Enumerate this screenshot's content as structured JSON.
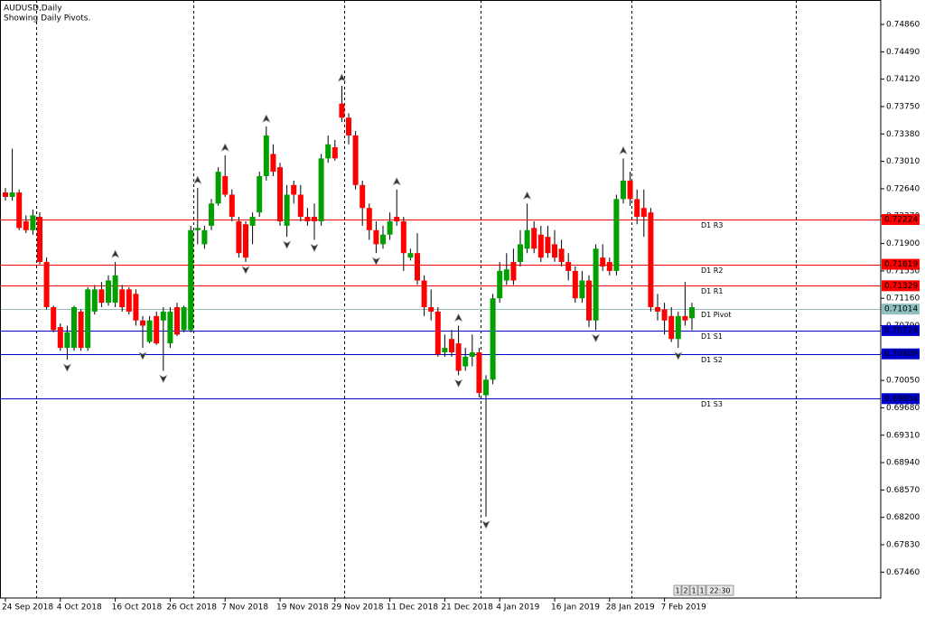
{
  "chart_data": {
    "type": "candlestick",
    "title": "AUDUSD,Daily",
    "subtitle": "Showing Daily Pivots.",
    "categories": [
      "24 Sep 2018",
      null,
      null,
      null,
      null,
      null,
      null,
      null,
      "4 Oct 2018",
      null,
      null,
      null,
      null,
      null,
      null,
      null,
      "16 Oct 2018",
      null,
      null,
      null,
      null,
      null,
      null,
      null,
      "26 Oct 2018",
      null,
      null,
      null,
      null,
      null,
      null,
      null,
      "7 Nov 2018",
      null,
      null,
      null,
      null,
      null,
      null,
      null,
      "19 Nov 2018",
      null,
      null,
      null,
      null,
      null,
      null,
      null,
      "29 Nov 2018",
      null,
      null,
      null,
      null,
      null,
      null,
      null,
      "11 Dec 2018",
      null,
      null,
      null,
      null,
      null,
      null,
      null,
      "21 Dec 2018",
      null,
      null,
      null,
      null,
      null,
      null,
      null,
      "4 Jan 2019",
      null,
      null,
      null,
      null,
      null,
      null,
      null,
      "16 Jan 2019",
      null,
      null,
      null,
      null,
      null,
      null,
      null,
      "28 Jan 2019",
      null,
      null,
      null,
      null,
      null,
      null,
      null,
      "7 Feb 2019",
      null,
      null,
      null,
      null
    ],
    "open": [
      0.7259,
      0.7253,
      0.7259,
      0.722,
      0.7208,
      0.7226,
      0.7165,
      0.7104,
      0.7077,
      0.7049,
      0.7049,
      0.7098,
      0.7049,
      0.7098,
      0.7128,
      0.711,
      0.711,
      0.7128,
      0.7128,
      0.7122,
      0.7086,
      0.7057,
      0.7092,
      0.7086,
      0.7055,
      0.7104,
      0.7073,
      0.7073,
      0.7208,
      0.7189,
      0.7214,
      0.7244,
      0.7281,
      0.7256,
      0.722,
      0.7216,
      0.7214,
      0.7232,
      0.7281,
      0.7311,
      0.7293,
      0.7214,
      0.7269,
      0.7256,
      0.7226,
      0.7226,
      0.722,
      0.7305,
      0.732,
      0.7379,
      0.736,
      0.7336,
      0.7269,
      0.7238,
      0.7208,
      0.7189,
      0.7202,
      0.7226,
      0.722,
      0.7171,
      0.7177,
      0.714,
      0.7104,
      0.7098,
      0.7043,
      0.7061,
      0.7055,
      0.7024,
      0.7037,
      0.7043,
      0.6985,
      0.7006,
      0.7116,
      0.714,
      0.7165,
      0.7165,
      0.7183,
      0.7211,
      0.7202,
      0.7199,
      0.7189,
      0.7183,
      0.7165,
      0.7153,
      0.7116,
      0.714,
      0.7086,
      0.7171,
      0.7165,
      0.7153,
      0.725,
      0.7275,
      0.725,
      0.7238,
      0.7232,
      0.7104,
      0.7101,
      0.7092,
      0.7061,
      0.7092,
      0.7089
    ],
    "high": [
      0.7265,
      0.7318,
      0.7263,
      0.7228,
      0.7236,
      0.7232,
      0.7171,
      0.7106,
      0.7082,
      0.7079,
      0.7106,
      0.7101,
      0.7131,
      0.7134,
      0.7138,
      0.7147,
      0.7165,
      0.7134,
      0.7131,
      0.7128,
      0.7092,
      0.7092,
      0.7098,
      0.7104,
      0.7104,
      0.711,
      0.7106,
      0.7214,
      0.7265,
      0.7214,
      0.725,
      0.7293,
      0.7309,
      0.7263,
      0.7226,
      0.722,
      0.7232,
      0.7287,
      0.7348,
      0.7324,
      0.7299,
      0.7269,
      0.7275,
      0.7269,
      0.7238,
      0.7244,
      0.7311,
      0.7336,
      0.733,
      0.7403,
      0.7366,
      0.7342,
      0.7275,
      0.7244,
      0.722,
      0.7214,
      0.7232,
      0.7263,
      0.7226,
      0.7183,
      0.7204,
      0.7147,
      0.7128,
      0.7104,
      0.7067,
      0.7073,
      0.7079,
      0.7049,
      0.7067,
      0.7049,
      0.7012,
      0.7122,
      0.7165,
      0.7177,
      0.7183,
      0.7208,
      0.7244,
      0.722,
      0.7214,
      0.7214,
      0.7208,
      0.7195,
      0.7177,
      0.7159,
      0.7153,
      0.7147,
      0.7189,
      0.7189,
      0.7171,
      0.7256,
      0.7305,
      0.7287,
      0.7263,
      0.7263,
      0.7238,
      0.7122,
      0.711,
      0.7104,
      0.7098,
      0.7138,
      0.711
    ],
    "low": [
      0.7248,
      0.7248,
      0.7208,
      0.7204,
      0.7202,
      0.7162,
      0.7101,
      0.707,
      0.7045,
      0.7033,
      0.7045,
      0.7045,
      0.7045,
      0.7094,
      0.7104,
      0.7106,
      0.7104,
      0.7098,
      0.7094,
      0.7079,
      0.7049,
      0.7055,
      0.7053,
      0.7018,
      0.7049,
      0.7065,
      0.707,
      0.707,
      0.7189,
      0.7183,
      0.7208,
      0.7241,
      0.7253,
      0.722,
      0.7171,
      0.7165,
      0.7189,
      0.7226,
      0.7275,
      0.7281,
      0.7214,
      0.7199,
      0.7244,
      0.722,
      0.7214,
      0.7195,
      0.7214,
      0.7299,
      0.7302,
      0.7354,
      0.7324,
      0.7263,
      0.7214,
      0.7195,
      0.7177,
      0.7183,
      0.7195,
      0.7214,
      0.7153,
      0.7167,
      0.7134,
      0.7092,
      0.7086,
      0.7037,
      0.7037,
      0.7037,
      0.7012,
      0.7018,
      0.7024,
      0.6982,
      0.6821,
      0.7,
      0.711,
      0.7134,
      0.7134,
      0.7159,
      0.7177,
      0.7177,
      0.7165,
      0.7171,
      0.7165,
      0.7159,
      0.714,
      0.711,
      0.711,
      0.7077,
      0.7073,
      0.7153,
      0.7147,
      0.7147,
      0.7244,
      0.7241,
      0.7216,
      0.7199,
      0.7098,
      0.7086,
      0.7067,
      0.7057,
      0.7049,
      0.7079,
      0.7073
    ],
    "close": [
      0.7253,
      0.7259,
      0.7211,
      0.7208,
      0.7228,
      0.7165,
      0.7104,
      0.7073,
      0.7049,
      0.707,
      0.7104,
      0.7049,
      0.7128,
      0.7128,
      0.711,
      0.714,
      0.7147,
      0.7104,
      0.7098,
      0.7086,
      0.7079,
      0.7086,
      0.7055,
      0.7098,
      0.7098,
      0.7067,
      0.7104,
      0.7208,
      0.7211,
      0.7208,
      0.7244,
      0.7287,
      0.7256,
      0.7226,
      0.7177,
      0.7171,
      0.7226,
      0.7281,
      0.7336,
      0.7287,
      0.722,
      0.7256,
      0.7256,
      0.7226,
      0.722,
      0.722,
      0.7305,
      0.7324,
      0.7305,
      0.736,
      0.7336,
      0.7269,
      0.7238,
      0.7208,
      0.7189,
      0.7202,
      0.722,
      0.722,
      0.7177,
      0.7177,
      0.714,
      0.7104,
      0.7098,
      0.704,
      0.7049,
      0.7043,
      0.7018,
      0.7037,
      0.7043,
      0.6988,
      0.7006,
      0.7116,
      0.7153,
      0.7155,
      0.714,
      0.7189,
      0.7208,
      0.7183,
      0.7171,
      0.7177,
      0.7171,
      0.7165,
      0.7153,
      0.7116,
      0.714,
      0.7086,
      0.7183,
      0.7159,
      0.7153,
      0.725,
      0.7275,
      0.725,
      0.7226,
      0.7226,
      0.7104,
      0.7098,
      0.7086,
      0.7061,
      0.7092,
      0.7086,
      0.7104
    ],
    "up_color": "#00a000",
    "down_color": "#ff0000",
    "ylim": [
      0.6711,
      0.7519
    ],
    "yticks": [
      {
        "value": 0.7486,
        "label": "0.74860"
      },
      {
        "value": 0.7449,
        "label": "0.74490"
      },
      {
        "value": 0.7412,
        "label": "0.74120"
      },
      {
        "value": 0.7375,
        "label": "0.73750"
      },
      {
        "value": 0.7338,
        "label": "0.73380"
      },
      {
        "value": 0.7301,
        "label": "0.73010"
      },
      {
        "value": 0.7264,
        "label": "0.72640"
      },
      {
        "value": 0.7227,
        "label": "0.72270"
      },
      {
        "value": 0.719,
        "label": "0.71900"
      },
      {
        "value": 0.7153,
        "label": "0.71530"
      },
      {
        "value": 0.7116,
        "label": "0.71160"
      },
      {
        "value": 0.7079,
        "label": "0.70790"
      },
      {
        "value": 0.7042,
        "label": "0.70420"
      },
      {
        "value": 0.7005,
        "label": "0.70050"
      },
      {
        "value": 0.6968,
        "label": "0.69680"
      },
      {
        "value": 0.6931,
        "label": "0.69310"
      },
      {
        "value": 0.6894,
        "label": "0.68940"
      },
      {
        "value": 0.6857,
        "label": "0.68570"
      },
      {
        "value": 0.682,
        "label": "0.68200"
      },
      {
        "value": 0.6783,
        "label": "0.67830"
      },
      {
        "value": 0.6746,
        "label": "0.67460"
      }
    ],
    "levels": [
      {
        "name": "D1 R3",
        "value": 0.72224,
        "color": "#ff0000"
      },
      {
        "name": "D1 R2",
        "value": 0.71619,
        "color": "#ff0000"
      },
      {
        "name": "D1 R1",
        "value": 0.71329,
        "color": "#ff0000"
      },
      {
        "name": "D1 Pivot",
        "value": 0.71014,
        "color": "#8fbfbf"
      },
      {
        "name": "D1 S1",
        "value": 0.70724,
        "color": "#0000cd"
      },
      {
        "name": "D1 S2",
        "value": 0.70409,
        "color": "#0000cd"
      },
      {
        "name": "D1 S3",
        "value": 0.69804,
        "color": "#0000cd"
      }
    ],
    "fractals": true,
    "status_boxes": [
      "1",
      "2",
      "1",
      "1",
      "22:30"
    ]
  }
}
